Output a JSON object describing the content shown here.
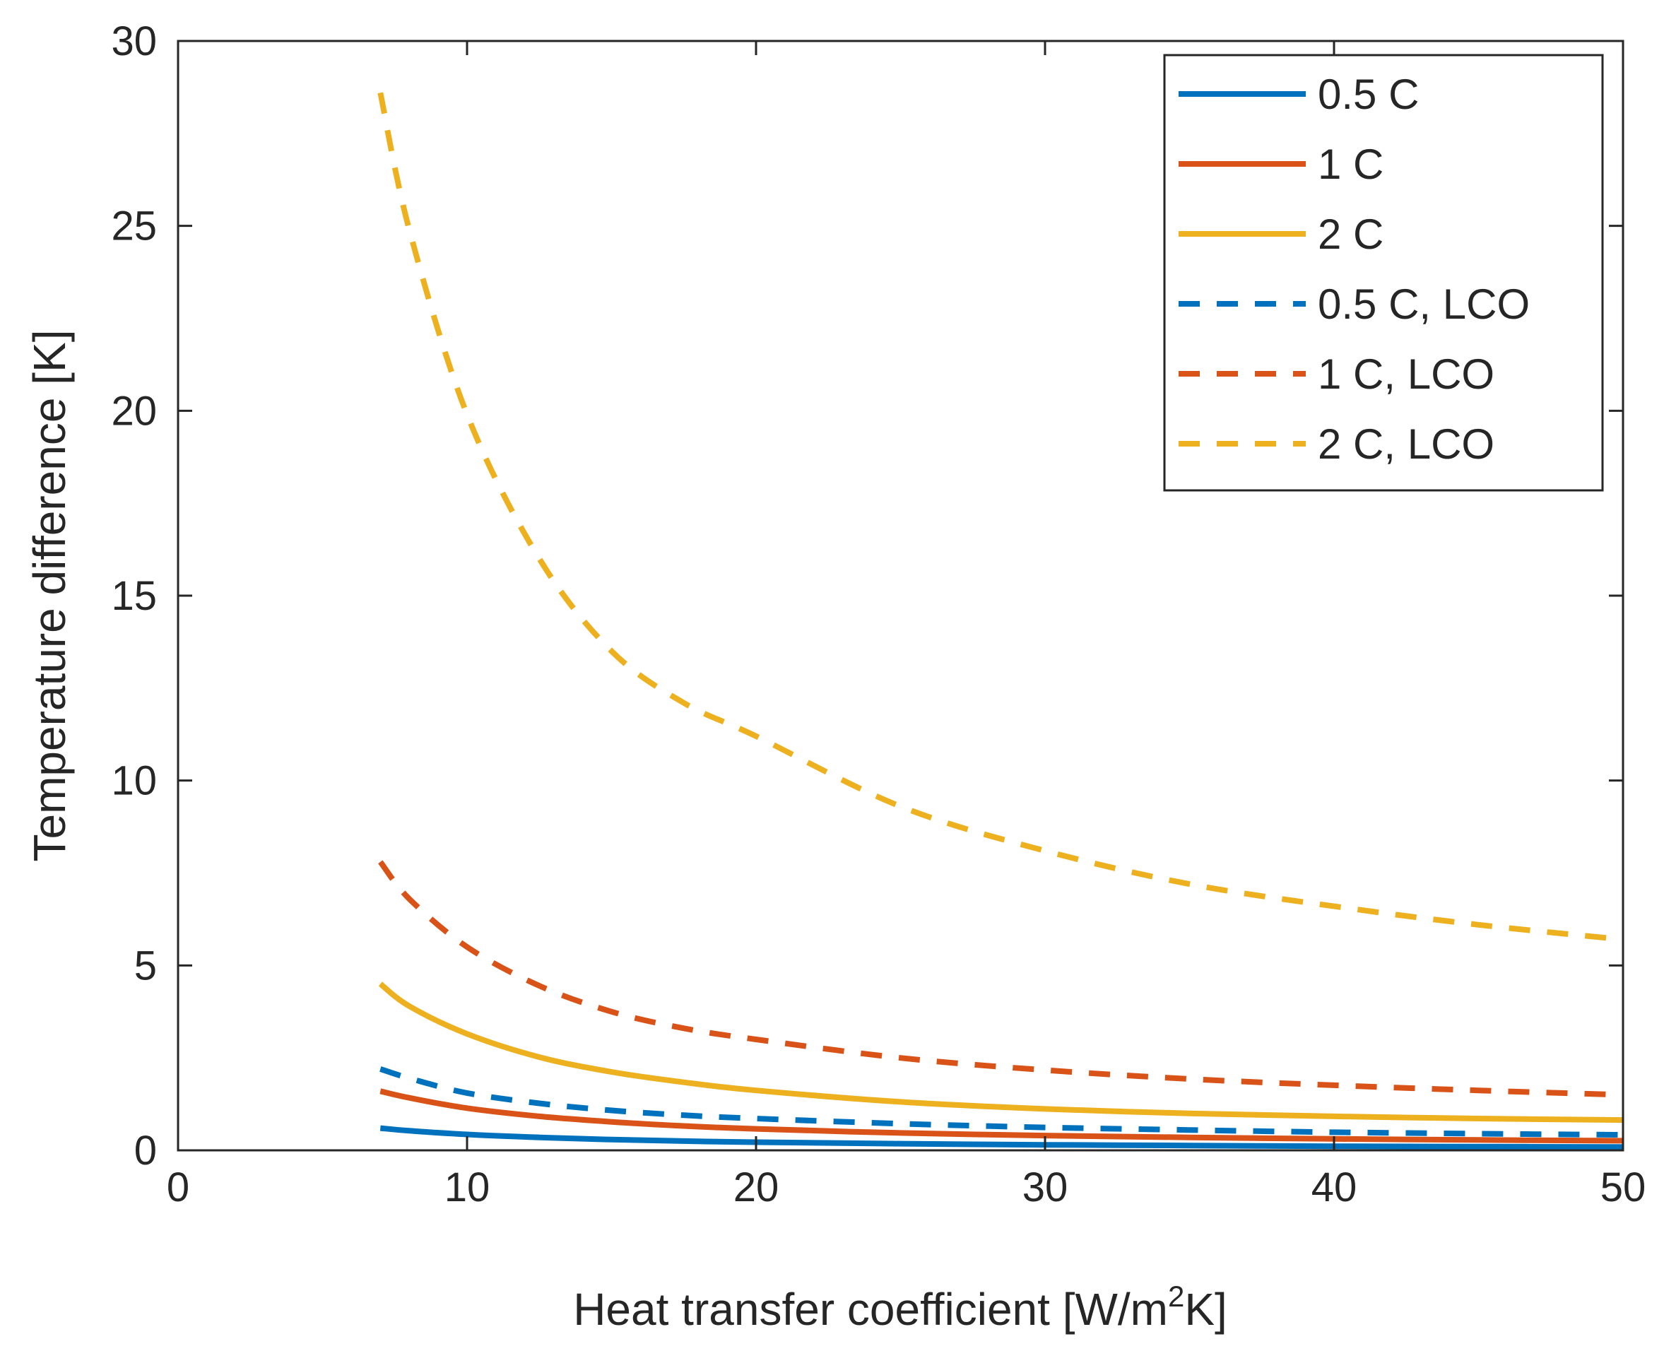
{
  "chart_data": {
    "type": "line",
    "title": "",
    "xlabel": "Heat transfer coefficient [W/m",
    "xlabel_sup": "2",
    "xlabel_tail": "K]",
    "ylabel": "Temperature difference [K]",
    "xlim": [
      0,
      50
    ],
    "ylim": [
      0,
      30
    ],
    "xticks": [
      0,
      10,
      20,
      30,
      40,
      50
    ],
    "yticks": [
      0,
      5,
      10,
      15,
      20,
      25,
      30
    ],
    "xtick_labels": [
      "0",
      "10",
      "20",
      "30",
      "40",
      "50"
    ],
    "ytick_labels": [
      "0",
      "5",
      "10",
      "15",
      "20",
      "25",
      "30"
    ],
    "grid": false,
    "legend_position": "top-right",
    "x": [
      7,
      8,
      10,
      12.5,
      15,
      17.5,
      20,
      25,
      30,
      35,
      40,
      45,
      50
    ],
    "series": [
      {
        "name": "0.5 C",
        "color": "#0072BD",
        "style": "solid",
        "values": [
          0.6,
          0.53,
          0.43,
          0.35,
          0.29,
          0.25,
          0.22,
          0.18,
          0.15,
          0.13,
          0.11,
          0.1,
          0.09
        ]
      },
      {
        "name": "1 C",
        "color": "#D95319",
        "style": "solid",
        "values": [
          1.6,
          1.42,
          1.14,
          0.92,
          0.77,
          0.66,
          0.58,
          0.47,
          0.4,
          0.35,
          0.31,
          0.28,
          0.26
        ]
      },
      {
        "name": "2 C",
        "color": "#EDB120",
        "style": "solid",
        "values": [
          4.5,
          3.9,
          3.15,
          2.52,
          2.12,
          1.84,
          1.62,
          1.31,
          1.12,
          1.0,
          0.92,
          0.86,
          0.82
        ]
      },
      {
        "name": "0.5 C, LCO",
        "color": "#0072BD",
        "style": "dashed",
        "values": [
          2.2,
          1.95,
          1.55,
          1.27,
          1.08,
          0.95,
          0.86,
          0.72,
          0.62,
          0.55,
          0.49,
          0.45,
          0.42
        ]
      },
      {
        "name": "1 C, LCO",
        "color": "#D95319",
        "style": "dashed",
        "values": [
          7.8,
          6.8,
          5.5,
          4.45,
          3.75,
          3.3,
          3.0,
          2.5,
          2.17,
          1.93,
          1.76,
          1.62,
          1.5
        ]
      },
      {
        "name": "2 C, LCO",
        "color": "#EDB120",
        "style": "dashed",
        "values": [
          28.6,
          24.9,
          19.9,
          16.0,
          13.5,
          12.1,
          11.2,
          9.3,
          8.1,
          7.2,
          6.6,
          6.1,
          5.7
        ]
      }
    ]
  }
}
